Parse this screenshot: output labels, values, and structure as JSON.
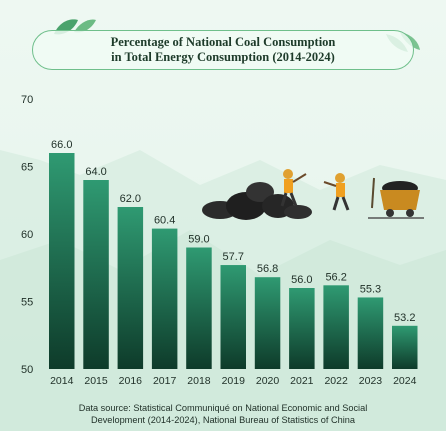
{
  "title_lines": [
    "Percentage of National Coal Consumption",
    "in Total Energy Consumption (2014-2024)"
  ],
  "source_lines": [
    "Data source: Statistical Communiqué on National Economic and Social",
    "Development (2014-2024), National Bureau of Statistics of China"
  ],
  "colors": {
    "bar_top": "#2f9a72",
    "bar_bottom": "#0e3b2a",
    "frame": "#6fbf8b"
  },
  "icons": [
    "leaf-icon",
    "coal-pile-icon",
    "miner-icon",
    "mine-cart-icon"
  ],
  "chart_data": {
    "type": "bar",
    "categories": [
      "2014",
      "2015",
      "2016",
      "2017",
      "2018",
      "2019",
      "2020",
      "2021",
      "2022",
      "2023",
      "2024"
    ],
    "values": [
      66.0,
      64.0,
      62.0,
      60.4,
      59.0,
      57.7,
      56.8,
      56.0,
      56.2,
      55.3,
      53.2
    ],
    "value_labels": [
      "66.0",
      "64.0",
      "62.0",
      "60.4",
      "59.0",
      "57.7",
      "56.8",
      "56.0",
      "56.2",
      "55.3",
      "53.2"
    ],
    "yticks": [
      "50",
      "55",
      "60",
      "65",
      "70"
    ],
    "ylim": [
      50,
      70
    ],
    "grid": false,
    "legend": "none"
  }
}
